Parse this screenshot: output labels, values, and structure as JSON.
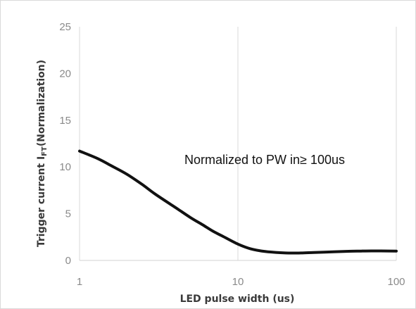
{
  "chart_data": {
    "type": "line",
    "xscale": "log",
    "xlim": [
      1,
      100
    ],
    "ylim": [
      0,
      25
    ],
    "xticks": [
      1,
      10,
      100
    ],
    "yticks": [
      0,
      5,
      10,
      15,
      20,
      25
    ],
    "xtick_labels": [
      "1",
      "10",
      "100"
    ],
    "ytick_labels": [
      "0",
      "5",
      "10",
      "15",
      "20",
      "25"
    ],
    "xlabel": "LED pulse width (us)",
    "ylabel": {
      "before": "Trigger current I",
      "sub": "FT",
      "after": "(Normalization)"
    },
    "grid": "vertical-major",
    "annotation": "Normalized to PW in≥ 100us",
    "series": [
      {
        "color": "#111111",
        "x": [
          1,
          1.3,
          1.6,
          2,
          2.5,
          3,
          4,
          5,
          6,
          7,
          8,
          10,
          12,
          15,
          20,
          25,
          30,
          40,
          50,
          60,
          70,
          80,
          100
        ],
        "y": [
          11.7,
          10.9,
          10.1,
          9.2,
          8.1,
          7.1,
          5.7,
          4.6,
          3.8,
          3.1,
          2.6,
          1.75,
          1.25,
          0.95,
          0.8,
          0.8,
          0.85,
          0.92,
          0.98,
          1.0,
          1.02,
          1.02,
          1.0
        ]
      }
    ]
  }
}
